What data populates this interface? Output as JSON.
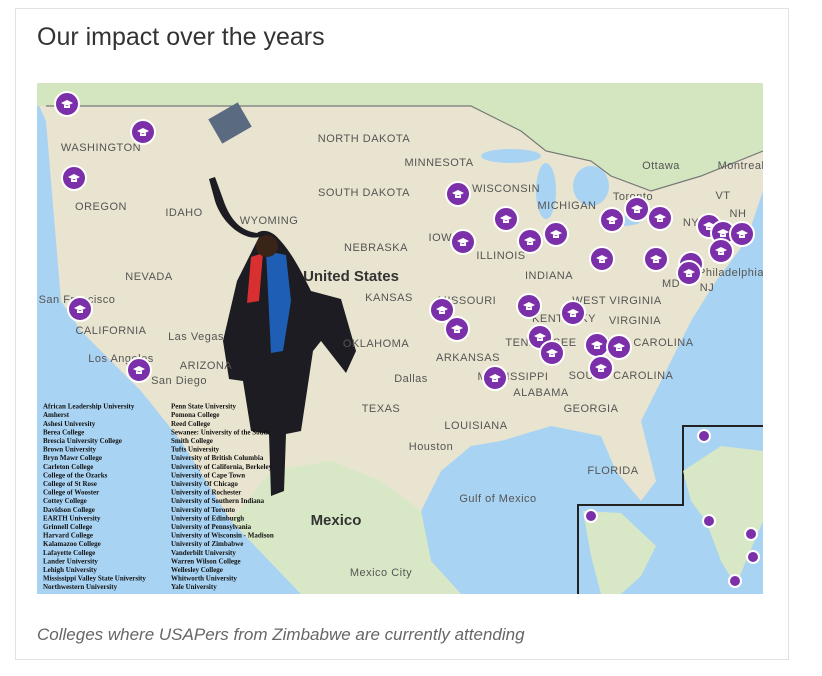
{
  "header": {
    "title": "Our impact over the years"
  },
  "map": {
    "labels": [
      "WASHINGTON",
      "OREGON",
      "IDAHO",
      "NORTH DAKOTA",
      "SOUTH DAKOTA",
      "MINNESOTA",
      "WYOMING",
      "NEBRASKA",
      "NEVADA",
      "United States",
      "San Francisco",
      "CALIFORNIA",
      "Las Vegas",
      "Los Angeles",
      "San Diego",
      "ARIZONA",
      "KANSAS",
      "OKLAHOMA",
      "TEXAS",
      "Dallas",
      "Houston",
      "Mexico",
      "Mexico City",
      "Gulf of Mexico",
      "WISCONSIN",
      "MICHIGAN",
      "IOWA",
      "ILLINOIS",
      "INDIANA",
      "MISSOURI",
      "KENTUCKY",
      "TENNESSEE",
      "ARKANSAS",
      "MISSISSIPPI",
      "ALABAMA",
      "GEORGIA",
      "LOUISIANA",
      "FLORIDA",
      "WEST VIRGINIA",
      "VIRGINIA",
      "NORTH CAROLINA",
      "SOUTH CAROLINA",
      "Ottawa",
      "Montreal",
      "Toronto",
      "VT",
      "NH",
      "NY",
      "Philadelphia",
      "NJ",
      "MD"
    ],
    "colleges_left": [
      "African Leadership University",
      "Amherst",
      "Ashesi University",
      "Berea College",
      "Brescia University College",
      "Brown University",
      "Bryn Mawr College",
      "Carleton College",
      "College of the Ozarks",
      "College of St Rose",
      "College of Wooster",
      "Cottey College",
      "Davidson College",
      "EARTH University",
      "Grinnell College",
      "Harvard College",
      "Kalamazoo College",
      "Lafayette College",
      "Lander University",
      "Lehigh University",
      "Mississippi Valley State University",
      "Northwestern University"
    ],
    "colleges_right": [
      "Penn State University",
      "Pomona College",
      "Reed College",
      "Sewanee: University of the South",
      "Smith College",
      "Tufts University",
      "University of British Columbia",
      "University of California, Berkeley",
      "University of Cape Town",
      "University Of Chicago",
      "University of Rochester",
      "University of Southern Indiana",
      "University of Toronto",
      "University of Edinburgh",
      "University of Pennsylvania",
      "University of Wisconsin - Madison",
      "University of Zimbabwe",
      "Vanderbilt University",
      "Warren Wilson College",
      "Wellesley College",
      "Whitworth University",
      "Yale University"
    ]
  },
  "caption": "Colleges where USAPers from Zimbabwe are currently attending"
}
